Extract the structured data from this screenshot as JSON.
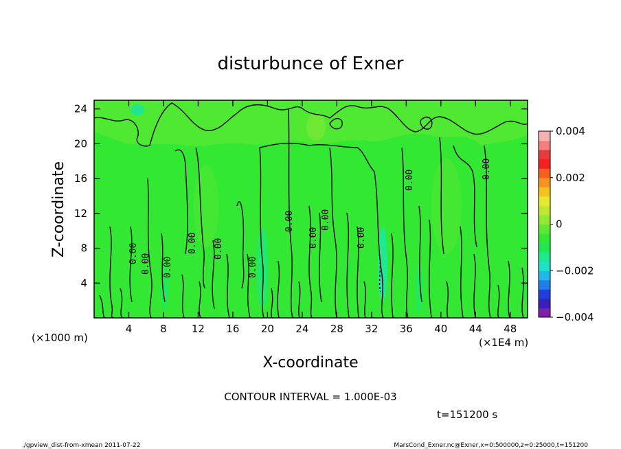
{
  "chart_data": {
    "type": "heatmap",
    "title": "disturbunce of Exner",
    "xlabel": "X-coordinate",
    "ylabel": "Z-coordinate",
    "x_unit_label": "(×1000 m)",
    "x_unit_label2": "(×1E4 m)",
    "xlim": [
      0,
      50
    ],
    "ylim": [
      0,
      25
    ],
    "x_ticks": [
      "4",
      "8",
      "12",
      "16",
      "20",
      "24",
      "28",
      "32",
      "36",
      "40",
      "44",
      "48"
    ],
    "y_ticks": [
      "4",
      "8",
      "12",
      "16",
      "20",
      "24"
    ],
    "colorbar": {
      "min": -0.004,
      "max": 0.004,
      "tick_labels": [
        "0.004",
        "0.002",
        "0",
        "−0.002",
        "−0.004"
      ],
      "colors": [
        "#7f1fa8",
        "#3a1fb8",
        "#1f3fdc",
        "#1f7fe8",
        "#1fb8e8",
        "#1fe0c8",
        "#1fe890",
        "#1fe850",
        "#33e833",
        "#5fe833",
        "#93e833",
        "#c0e833",
        "#e8e833",
        "#f5c21f",
        "#f5951f",
        "#f5601f",
        "#f51f1f",
        "#e83a3a",
        "#f57f7f",
        "#f5b0b0"
      ]
    },
    "contour_interval_text": "CONTOUR INTERVAL = 1.000E-03",
    "contour_labels": [
      "0.00",
      "0.00",
      "0.00",
      "0.00",
      "0.00",
      "0.00",
      "0.00",
      "0.00",
      "0.00",
      "0.00",
      "0.00",
      "0.00"
    ],
    "time_text": "t=151200 s",
    "field_value_range": [
      -0.002,
      0.0006
    ],
    "dominant_value": 0
  },
  "footer": {
    "left": "./gpview_dist-from-xmean  2011-07-22",
    "right": "MarsCond_Exner.nc@Exner,x=0:500000,z=0:25000,t=151200"
  }
}
